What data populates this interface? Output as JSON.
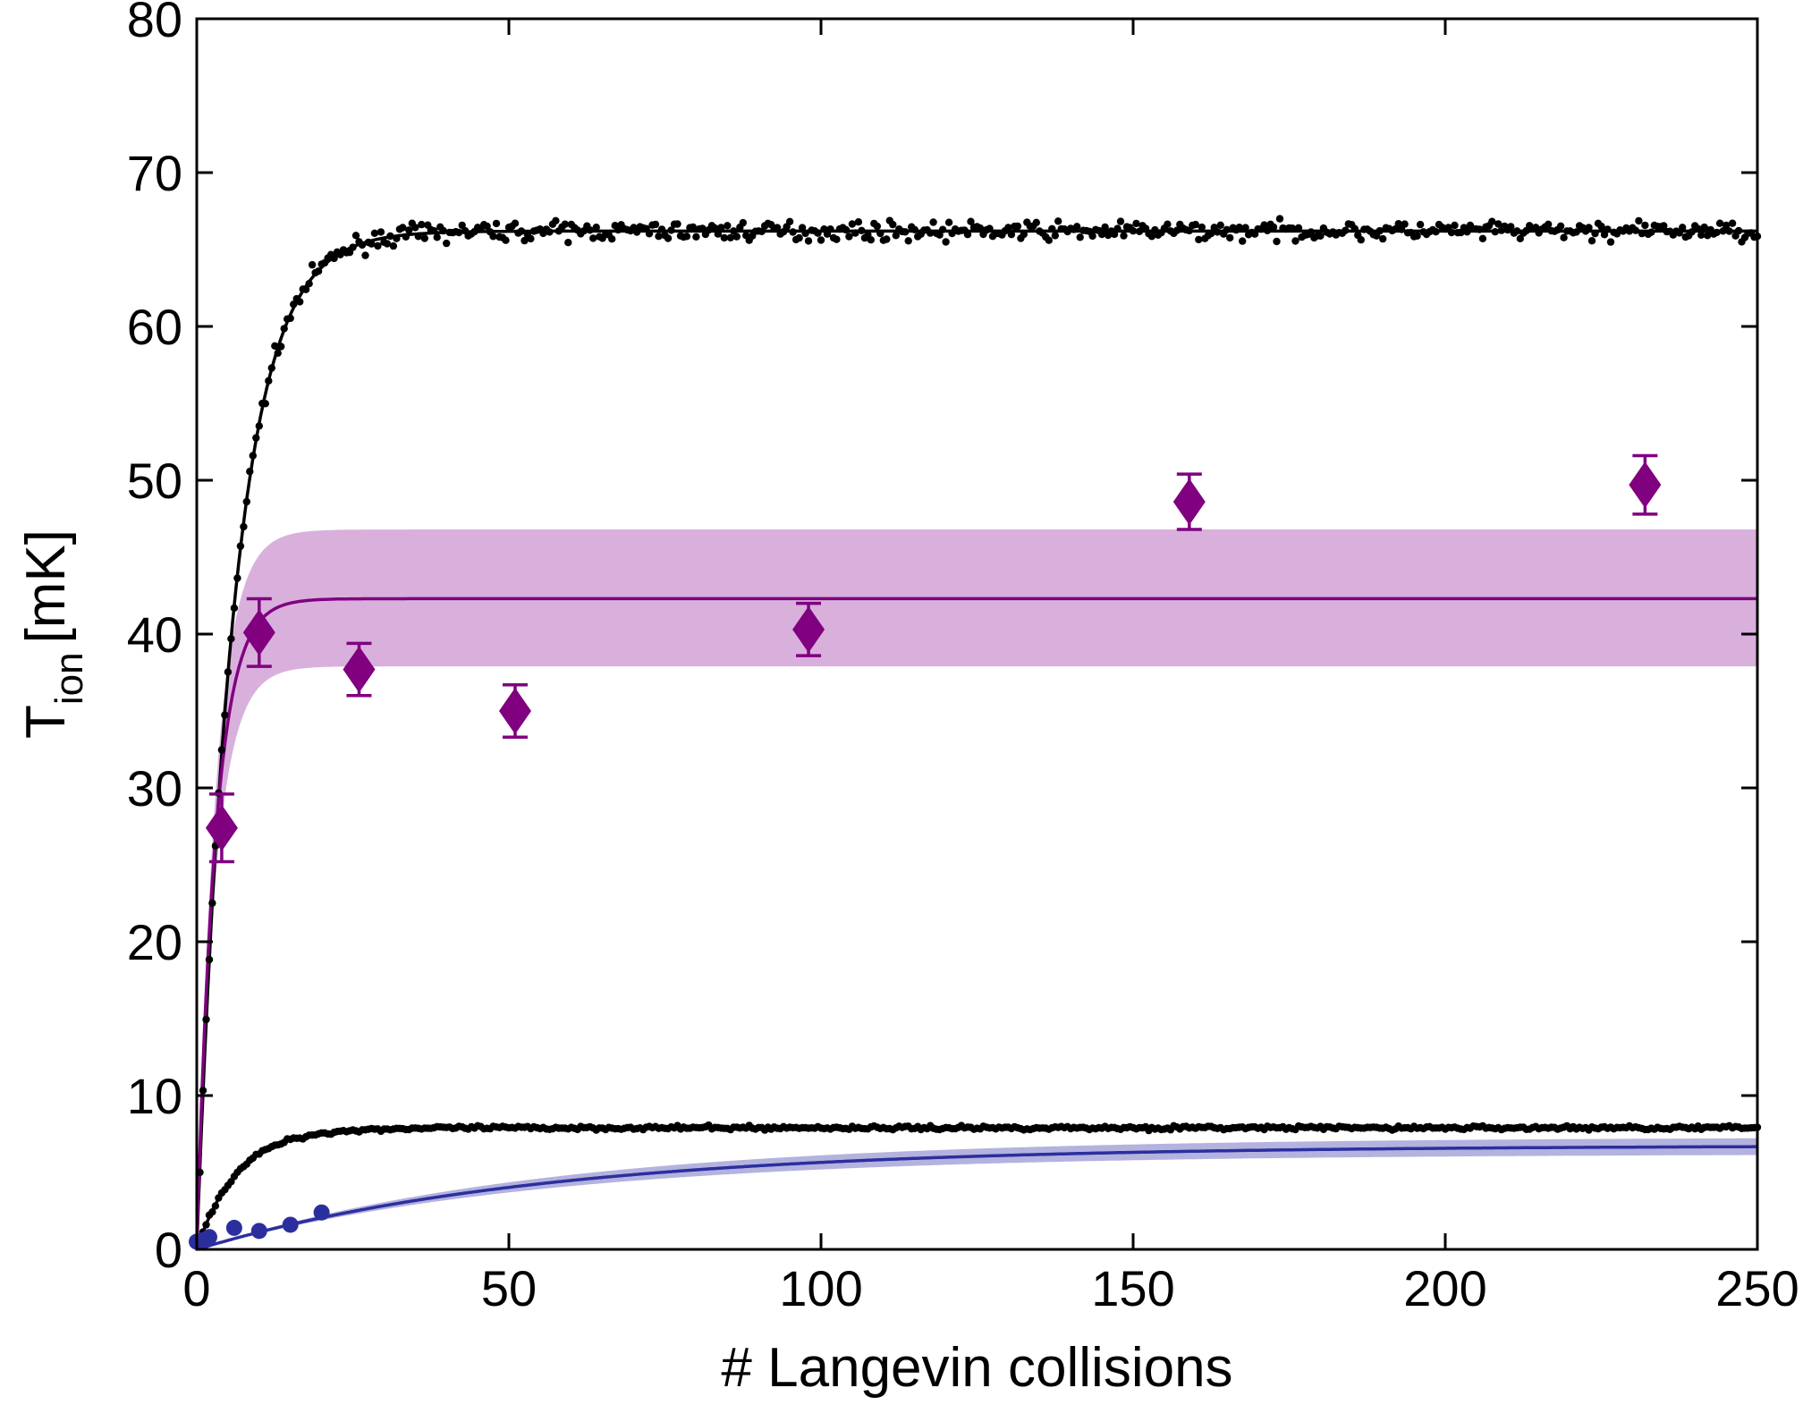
{
  "chart_data": {
    "type": "scatter",
    "xlabel": "# Langevin collisions",
    "ylabel_main": "T",
    "ylabel_sub": "ion",
    "ylabel_unit": "[mK]",
    "xlim": [
      0,
      250
    ],
    "ylim": [
      0,
      80
    ],
    "xticks": [
      0,
      50,
      100,
      150,
      200,
      250
    ],
    "yticks": [
      0,
      10,
      20,
      30,
      40,
      50,
      60,
      70,
      80
    ],
    "xtick_labels": [
      "0",
      "50",
      "100",
      "150",
      "200",
      "250"
    ],
    "ytick_labels": [
      "0",
      "10",
      "20",
      "30",
      "40",
      "50",
      "60",
      "70",
      "80"
    ],
    "grid": false,
    "legend": "none",
    "colors": {
      "black": "#000000",
      "purple": "#800080",
      "purple_band": "#d9b0dc",
      "blue": "#2b2f9e",
      "blue_band": "#b4b2de"
    },
    "series": [
      {
        "kind": "scatter-small",
        "color": "black",
        "description": "upper simulation dots",
        "x_range": [
          0,
          250
        ],
        "plateau": 66.2,
        "tau": 6.0,
        "noise": 0.55
      },
      {
        "kind": "line",
        "color": "black",
        "model": "saturating-exponential",
        "plateau": 66.2,
        "tau": 6.0
      },
      {
        "kind": "scatter-small",
        "color": "black",
        "description": "lower simulation dots",
        "x_range": [
          0,
          250
        ],
        "plateau": 7.9,
        "tau": 6.5,
        "noise": 0.12
      },
      {
        "kind": "line",
        "color": "black",
        "model": "saturating-exponential",
        "plateau": 7.9,
        "tau": 6.5
      },
      {
        "kind": "band",
        "color": "purple_band",
        "model": "saturating-exponential",
        "plateau_low": 37.9,
        "plateau_high": 46.8,
        "tau": 3.0
      },
      {
        "kind": "line",
        "color": "purple",
        "model": "saturating-exponential",
        "plateau": 42.3,
        "tau": 3.0
      },
      {
        "kind": "diamonds-errorbars",
        "color": "purple",
        "points": [
          {
            "x": 4,
            "y": 27.4,
            "err": 2.2
          },
          {
            "x": 10,
            "y": 40.1,
            "err": 2.2
          },
          {
            "x": 26,
            "y": 37.7,
            "err": 1.7
          },
          {
            "x": 51,
            "y": 35.0,
            "err": 1.7
          },
          {
            "x": 98,
            "y": 40.3,
            "err": 1.7
          },
          {
            "x": 159,
            "y": 48.6,
            "err": 1.8
          },
          {
            "x": 232,
            "y": 49.7,
            "err": 1.9
          }
        ]
      },
      {
        "kind": "band",
        "color": "blue_band",
        "model": "saturating-exponential",
        "plateau_low": 6.2,
        "plateau_high": 7.3,
        "tau": 55.0
      },
      {
        "kind": "line",
        "color": "blue",
        "model": "saturating-exponential",
        "plateau": 6.75,
        "tau": 55.0
      },
      {
        "kind": "scatter-large",
        "color": "blue",
        "points": [
          {
            "x": 0,
            "y": 0.5
          },
          {
            "x": 1,
            "y": 0.6
          },
          {
            "x": 2,
            "y": 0.8
          },
          {
            "x": 6,
            "y": 1.4
          },
          {
            "x": 10,
            "y": 1.2
          },
          {
            "x": 15,
            "y": 1.6
          },
          {
            "x": 20,
            "y": 2.4
          }
        ]
      }
    ]
  }
}
